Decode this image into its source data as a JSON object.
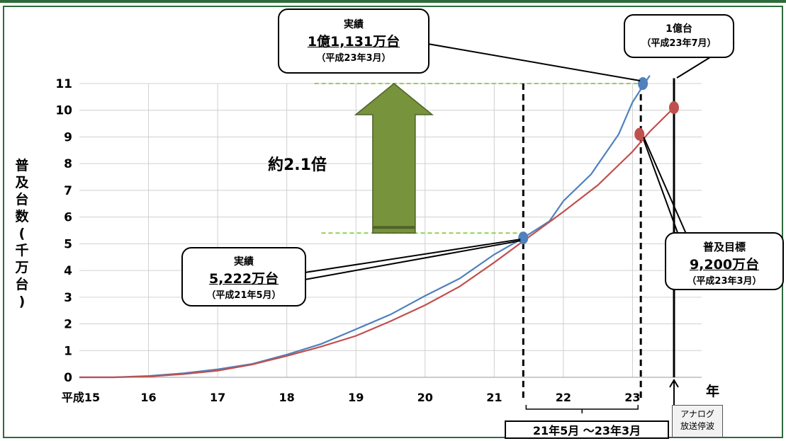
{
  "chart_data": {
    "type": "line",
    "ylabel": "普及台数(千万台)",
    "xlabel": "年",
    "ylim": [
      0,
      11
    ],
    "yticks": [
      "0",
      "1",
      "2",
      "3",
      "4",
      "5",
      "6",
      "7",
      "8",
      "9",
      "10",
      "11"
    ],
    "xticks": [
      "平成15",
      "16",
      "17",
      "18",
      "19",
      "20",
      "21",
      "22",
      "23"
    ],
    "xlim": [
      15,
      24
    ],
    "grid": true,
    "series": [
      {
        "color": "#4f81bd",
        "points": [
          [
            15,
            0
          ],
          [
            15.5,
            0
          ],
          [
            16,
            0.05
          ],
          [
            16.5,
            0.15
          ],
          [
            17,
            0.3
          ],
          [
            17.5,
            0.5
          ],
          [
            18,
            0.85
          ],
          [
            18.5,
            1.25
          ],
          [
            19,
            1.8
          ],
          [
            19.5,
            2.35
          ],
          [
            20,
            3.05
          ],
          [
            20.5,
            3.7
          ],
          [
            21,
            4.6
          ],
          [
            21.42,
            5.22
          ],
          [
            21.8,
            5.85
          ],
          [
            22,
            6.6
          ],
          [
            22.4,
            7.6
          ],
          [
            22.8,
            9.1
          ],
          [
            23,
            10.3
          ],
          [
            23.25,
            11.3
          ]
        ]
      },
      {
        "color": "#c0504d",
        "points": [
          [
            15,
            0
          ],
          [
            15.5,
            0
          ],
          [
            16,
            0.03
          ],
          [
            16.5,
            0.12
          ],
          [
            17,
            0.25
          ],
          [
            17.5,
            0.48
          ],
          [
            18,
            0.8
          ],
          [
            18.5,
            1.15
          ],
          [
            19,
            1.55
          ],
          [
            19.5,
            2.1
          ],
          [
            20,
            2.7
          ],
          [
            20.5,
            3.4
          ],
          [
            21,
            4.3
          ],
          [
            21.42,
            5.1
          ],
          [
            22,
            6.2
          ],
          [
            22.5,
            7.2
          ],
          [
            23,
            8.45
          ],
          [
            23.25,
            9.2
          ],
          [
            23.6,
            10.1
          ]
        ]
      }
    ],
    "markers": [
      {
        "x": 21.42,
        "y": 5.22,
        "color": "#4f81bd"
      },
      {
        "x": 23.15,
        "y": 11.0,
        "color": "#4f81bd"
      },
      {
        "x": 23.1,
        "y": 9.1,
        "color": "#c0504d"
      },
      {
        "x": 23.6,
        "y": 10.1,
        "color": "#c0504d"
      }
    ],
    "annotations": {
      "ratio": "約2.1倍",
      "callout_2011_actual": {
        "title": "実績",
        "value": "1億1,131万台",
        "date": "（平成23年3月）"
      },
      "callout_2009_actual": {
        "title": "実績",
        "value": "5,222万台",
        "date": "（平成21年5月）"
      },
      "callout_target_100m": {
        "title": "1億台",
        "date": "（平成23年7月）"
      },
      "callout_goal": {
        "title": "普及目標",
        "value": "9,200万台",
        "date": "（平成23年3月）"
      },
      "period": "21年5月 ～23年3月",
      "analog_end": [
        "アナログ",
        "放送停波"
      ]
    },
    "colors": {
      "actual": "#4f81bd",
      "target": "#c0504d",
      "arrow": "#77933c",
      "guide": "#92d050"
    }
  }
}
